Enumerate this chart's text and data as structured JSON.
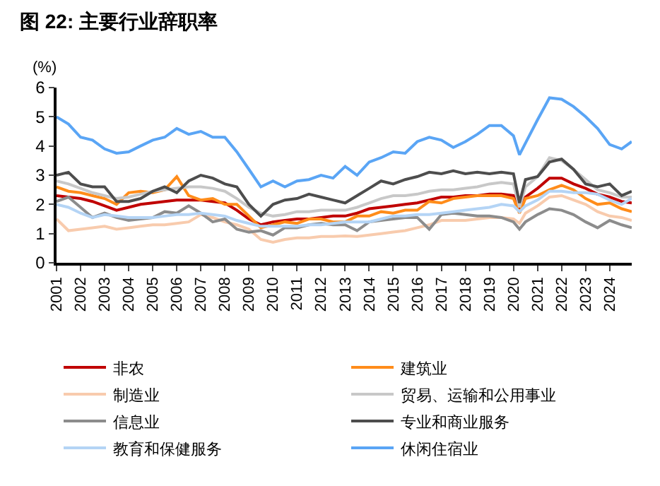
{
  "chart_data": {
    "type": "line",
    "title": "图 22: 主要行业辞职率",
    "ylabel": "(%)",
    "x": [
      "2001-01",
      "2001-07",
      "2002-01",
      "2002-07",
      "2003-01",
      "2003-07",
      "2004-01",
      "2004-07",
      "2005-01",
      "2005-07",
      "2006-01",
      "2006-07",
      "2007-01",
      "2007-07",
      "2008-01",
      "2008-07",
      "2009-01",
      "2009-07",
      "2010-01",
      "2010-07",
      "2011-01",
      "2011-07",
      "2012-01",
      "2012-07",
      "2013-01",
      "2013-07",
      "2014-01",
      "2014-07",
      "2015-01",
      "2015-07",
      "2016-01",
      "2016-07",
      "2017-01",
      "2017-07",
      "2018-01",
      "2018-07",
      "2019-01",
      "2019-07",
      "2020-01",
      "2020-04",
      "2020-07",
      "2021-01",
      "2021-07",
      "2022-01",
      "2022-07",
      "2023-01",
      "2023-07",
      "2024-01",
      "2024-07",
      "2024-12"
    ],
    "xlim": [
      "2001-01",
      "2024-12"
    ],
    "xticks": [
      {
        "value": "2001-01",
        "label": "2001"
      },
      {
        "value": "2002-01",
        "label": "2002"
      },
      {
        "value": "2003-01",
        "label": "2003"
      },
      {
        "value": "2004-01",
        "label": "2004"
      },
      {
        "value": "2005-01",
        "label": "2005"
      },
      {
        "value": "2006-01",
        "label": "2006"
      },
      {
        "value": "2007-01",
        "label": "2007"
      },
      {
        "value": "2008-01",
        "label": "2008"
      },
      {
        "value": "2009-01",
        "label": "2009"
      },
      {
        "value": "2010-01",
        "label": "2010"
      },
      {
        "value": "2011-01",
        "label": "2011"
      },
      {
        "value": "2012-01",
        "label": "2012"
      },
      {
        "value": "2013-01",
        "label": "2013"
      },
      {
        "value": "2014-01",
        "label": "2014"
      },
      {
        "value": "2015-01",
        "label": "2015"
      },
      {
        "value": "2016-01",
        "label": "2016"
      },
      {
        "value": "2017-01",
        "label": "2017"
      },
      {
        "value": "2018-01",
        "label": "2018"
      },
      {
        "value": "2019-01",
        "label": "2019"
      },
      {
        "value": "2020-01",
        "label": "2020"
      },
      {
        "value": "2021-01",
        "label": "2021"
      },
      {
        "value": "2022-01",
        "label": "2022"
      },
      {
        "value": "2023-01",
        "label": "2023"
      },
      {
        "value": "2024-01",
        "label": "2024"
      }
    ],
    "ylim": [
      0,
      6
    ],
    "yticks": [
      0,
      1,
      2,
      3,
      4,
      5,
      6
    ],
    "legend": "bottom",
    "line_style": "solid",
    "marker": "none",
    "series": [
      {
        "name": "非农",
        "color": "#c00000",
        "values": [
          2.3,
          2.25,
          2.2,
          2.1,
          1.95,
          1.8,
          1.9,
          2.0,
          2.05,
          2.1,
          2.15,
          2.15,
          2.15,
          2.1,
          2.05,
          1.8,
          1.5,
          1.3,
          1.4,
          1.45,
          1.5,
          1.5,
          1.55,
          1.6,
          1.6,
          1.7,
          1.85,
          1.9,
          1.95,
          2.0,
          2.05,
          2.15,
          2.25,
          2.25,
          2.3,
          2.3,
          2.35,
          2.35,
          2.3,
          1.8,
          2.25,
          2.55,
          2.9,
          2.9,
          2.7,
          2.55,
          2.35,
          2.25,
          2.1,
          2.05
        ]
      },
      {
        "name": "建筑业",
        "color": "#ff8c1a",
        "values": [
          2.6,
          2.45,
          2.4,
          2.3,
          2.2,
          2.0,
          2.4,
          2.45,
          2.4,
          2.5,
          2.95,
          2.3,
          2.15,
          2.2,
          2.0,
          2.0,
          1.6,
          1.2,
          1.3,
          1.4,
          1.35,
          1.5,
          1.5,
          1.4,
          1.4,
          1.6,
          1.6,
          1.75,
          1.7,
          1.8,
          1.8,
          2.1,
          2.05,
          2.2,
          2.25,
          2.3,
          2.3,
          2.3,
          2.2,
          1.7,
          2.2,
          2.3,
          2.5,
          2.65,
          2.5,
          2.2,
          2.0,
          2.05,
          1.85,
          1.75
        ]
      },
      {
        "name": "制造业",
        "color": "#f8cbad",
        "values": [
          1.5,
          1.1,
          1.15,
          1.2,
          1.25,
          1.15,
          1.2,
          1.25,
          1.3,
          1.3,
          1.35,
          1.4,
          1.65,
          1.55,
          1.4,
          1.3,
          1.15,
          0.8,
          0.7,
          0.8,
          0.85,
          0.85,
          0.9,
          0.9,
          0.92,
          0.9,
          0.95,
          1.0,
          1.05,
          1.1,
          1.2,
          1.3,
          1.45,
          1.45,
          1.45,
          1.5,
          1.55,
          1.55,
          1.5,
          1.35,
          1.7,
          1.95,
          2.25,
          2.3,
          2.15,
          2.0,
          1.75,
          1.6,
          1.55,
          1.45
        ]
      },
      {
        "name": "贸易、运输和公用事业",
        "color": "#c8c8c8",
        "values": [
          2.8,
          2.7,
          2.55,
          2.4,
          2.3,
          2.2,
          2.25,
          2.35,
          2.45,
          2.5,
          2.55,
          2.6,
          2.6,
          2.55,
          2.45,
          2.2,
          1.9,
          1.7,
          1.6,
          1.65,
          1.75,
          1.75,
          1.8,
          1.8,
          1.8,
          1.9,
          2.05,
          2.2,
          2.3,
          2.3,
          2.35,
          2.45,
          2.5,
          2.5,
          2.55,
          2.6,
          2.7,
          2.75,
          2.7,
          1.9,
          2.6,
          2.95,
          3.6,
          3.5,
          3.2,
          2.85,
          2.5,
          2.4,
          2.25,
          2.25
        ]
      },
      {
        "name": "信息业",
        "color": "#8c8c8c",
        "values": [
          2.1,
          2.25,
          1.9,
          1.55,
          1.7,
          1.55,
          1.45,
          1.5,
          1.55,
          1.75,
          1.7,
          1.95,
          1.7,
          1.4,
          1.5,
          1.15,
          1.05,
          1.1,
          0.95,
          1.2,
          1.2,
          1.3,
          1.35,
          1.3,
          1.3,
          1.1,
          1.4,
          1.45,
          1.5,
          1.55,
          1.55,
          1.15,
          1.65,
          1.7,
          1.65,
          1.6,
          1.6,
          1.55,
          1.4,
          1.15,
          1.4,
          1.65,
          1.85,
          1.8,
          1.65,
          1.4,
          1.2,
          1.45,
          1.3,
          1.2
        ]
      },
      {
        "name": "专业和商业服务",
        "color": "#4d4d4d",
        "values": [
          3.0,
          3.1,
          2.7,
          2.6,
          2.6,
          2.1,
          2.1,
          2.2,
          2.45,
          2.6,
          2.4,
          2.8,
          3.0,
          2.9,
          2.7,
          2.6,
          2.0,
          1.6,
          2.0,
          2.15,
          2.2,
          2.35,
          2.25,
          2.15,
          2.05,
          2.3,
          2.55,
          2.8,
          2.7,
          2.85,
          2.95,
          3.1,
          3.05,
          3.15,
          3.05,
          3.1,
          3.05,
          3.1,
          3.05,
          2.05,
          2.85,
          2.95,
          3.45,
          3.55,
          3.2,
          2.7,
          2.6,
          2.7,
          2.3,
          2.45
        ]
      },
      {
        "name": "教育和保健服务",
        "color": "#b4d4f5",
        "values": [
          2.0,
          1.9,
          1.7,
          1.55,
          1.65,
          1.6,
          1.55,
          1.55,
          1.55,
          1.6,
          1.65,
          1.65,
          1.7,
          1.65,
          1.6,
          1.45,
          1.35,
          1.25,
          1.25,
          1.25,
          1.25,
          1.3,
          1.3,
          1.35,
          1.4,
          1.4,
          1.4,
          1.5,
          1.6,
          1.6,
          1.65,
          1.65,
          1.7,
          1.75,
          1.8,
          1.85,
          1.9,
          2.0,
          1.95,
          1.75,
          1.95,
          2.15,
          2.45,
          2.45,
          2.4,
          2.4,
          2.35,
          2.15,
          2.0,
          2.2
        ]
      },
      {
        "name": "休闲住宿业",
        "color": "#5aa5f5",
        "values": [
          5.0,
          4.75,
          4.3,
          4.2,
          3.9,
          3.75,
          3.8,
          4.0,
          4.2,
          4.3,
          4.6,
          4.4,
          4.5,
          4.3,
          4.3,
          3.8,
          3.2,
          2.6,
          2.8,
          2.6,
          2.8,
          2.85,
          3.0,
          2.9,
          3.3,
          3.0,
          3.45,
          3.6,
          3.8,
          3.75,
          4.15,
          4.3,
          4.2,
          3.95,
          4.15,
          4.4,
          4.7,
          4.7,
          4.35,
          3.7,
          4.1,
          4.9,
          5.65,
          5.6,
          5.35,
          5.0,
          4.6,
          4.05,
          3.9,
          4.15
        ]
      }
    ]
  }
}
